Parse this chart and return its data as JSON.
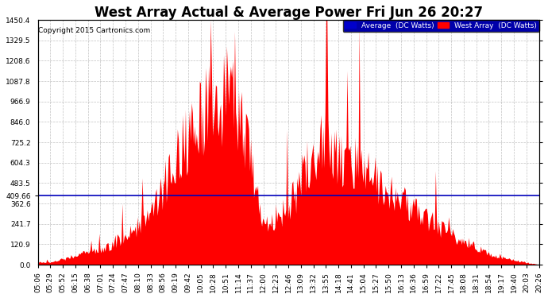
{
  "title": "West Array Actual & Average Power Fri Jun 26 20:27",
  "copyright": "Copyright 2015 Cartronics.com",
  "legend_labels": [
    "Average  (DC Watts)",
    "West Array  (DC Watts)"
  ],
  "legend_colors": [
    "#0000ff",
    "#ff0000"
  ],
  "avg_line_value": 409.66,
  "avg_line_color": "#0000bb",
  "fill_color": "#ff0000",
  "background_color": "#ffffff",
  "grid_color": "#999999",
  "ylim": [
    0,
    1450.4
  ],
  "yticks": [
    0.0,
    120.9,
    241.7,
    362.6,
    483.5,
    604.3,
    725.2,
    846.0,
    966.9,
    1087.8,
    1208.6,
    1329.5,
    1450.4
  ],
  "ytick_labels": [
    "0.0",
    "120.9",
    "241.7",
    "362.6",
    "483.5",
    "604.3",
    "725.2",
    "846.0",
    "966.9",
    "1087.8",
    "1208.6",
    "1329.5",
    "1450.4"
  ],
  "title_fontsize": 12,
  "tick_fontsize": 6.5,
  "copyright_fontsize": 6.5,
  "xtick_labels": [
    "05:06",
    "05:29",
    "05:52",
    "06:15",
    "06:38",
    "07:01",
    "07:24",
    "07:47",
    "08:10",
    "08:33",
    "08:56",
    "09:19",
    "09:42",
    "10:05",
    "10:28",
    "10:51",
    "11:14",
    "11:37",
    "12:00",
    "12:23",
    "12:46",
    "13:09",
    "13:32",
    "13:55",
    "14:18",
    "14:41",
    "15:04",
    "15:27",
    "15:50",
    "16:13",
    "16:36",
    "16:59",
    "17:22",
    "17:45",
    "18:08",
    "18:31",
    "18:54",
    "19:17",
    "19:40",
    "20:03",
    "20:26"
  ]
}
